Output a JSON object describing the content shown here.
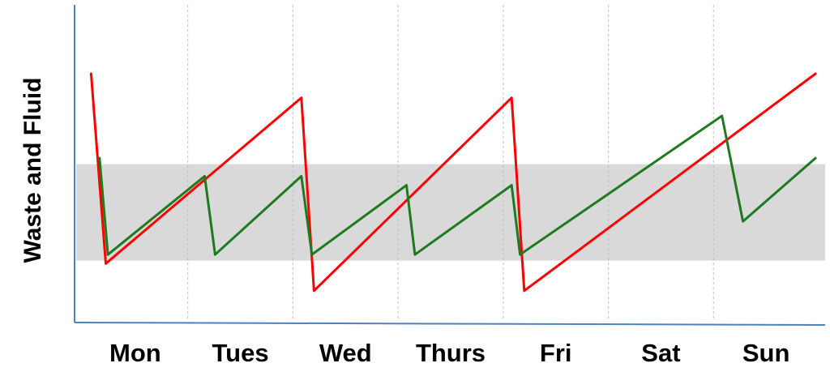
{
  "chart_data": {
    "type": "line",
    "title": "",
    "xlabel": "",
    "ylabel": "Waste and Fluid",
    "categories": [
      "Mon",
      "Tues",
      "Wed",
      "Thurs",
      "Fri",
      "Sat",
      "Sun"
    ],
    "xlim": [
      0,
      7
    ],
    "ylim": [
      0,
      100
    ],
    "band": {
      "from": 20,
      "to": 52,
      "color": "#d9d9d9"
    },
    "grid": {
      "vertical": true,
      "style": "dashed",
      "color": "#bfbfbf"
    },
    "legend": "none",
    "series": [
      {
        "color": "#ff0000",
        "points": [
          [
            0.08,
            82
          ],
          [
            0.22,
            19
          ],
          [
            2.08,
            74
          ],
          [
            2.2,
            10
          ],
          [
            4.08,
            74
          ],
          [
            4.2,
            10
          ],
          [
            6.97,
            82
          ]
        ]
      },
      {
        "color": "#1e7a1e",
        "points": [
          [
            0.16,
            54
          ],
          [
            0.24,
            22
          ],
          [
            1.16,
            48
          ],
          [
            1.26,
            22
          ],
          [
            2.08,
            48
          ],
          [
            2.18,
            22
          ],
          [
            3.08,
            45
          ],
          [
            3.16,
            22
          ],
          [
            4.08,
            45
          ],
          [
            4.16,
            22
          ],
          [
            6.08,
            68
          ],
          [
            6.28,
            33
          ],
          [
            6.97,
            54
          ]
        ]
      }
    ],
    "axis_color": "#4f81bd"
  }
}
